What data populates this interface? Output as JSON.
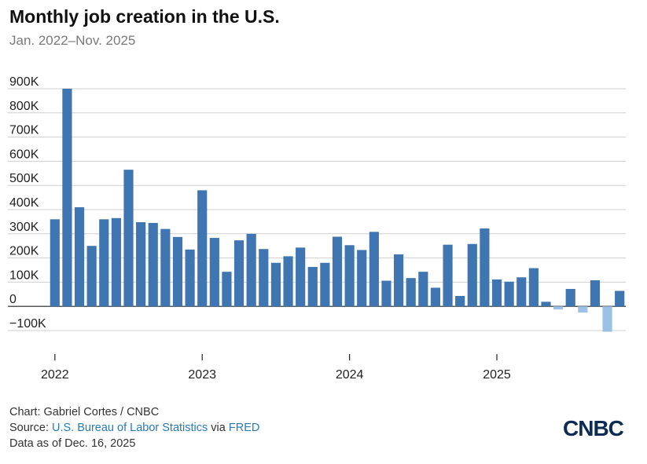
{
  "header": {
    "title": "Monthly job creation in the U.S.",
    "subtitle": "Jan. 2022–Nov. 2025"
  },
  "footer": {
    "credit": "Chart: Gabriel Cortes / CNBC",
    "source_prefix": "Source: ",
    "source_link1": "U.S. Bureau of Labor Statistics",
    "source_via": " via ",
    "source_link2": "FRED",
    "data_as_of": "Data as of Dec. 16, 2025"
  },
  "logo": "CNBC",
  "colors": {
    "bar": "#3f76b2",
    "bar_recent": "#9bc1e6",
    "grid": "#cfcfcf",
    "link": "#2a7ab8"
  },
  "chart_data": {
    "type": "bar",
    "title": "Monthly job creation in the U.S.",
    "subtitle": "Jan. 2022–Nov. 2025",
    "ylim": [
      -100000,
      900000
    ],
    "yticks": [
      {
        "value": 900000,
        "label": "900K"
      },
      {
        "value": 800000,
        "label": "800K"
      },
      {
        "value": 700000,
        "label": "700K"
      },
      {
        "value": 600000,
        "label": "600K"
      },
      {
        "value": 500000,
        "label": "500K"
      },
      {
        "value": 400000,
        "label": "400K"
      },
      {
        "value": 300000,
        "label": "300K"
      },
      {
        "value": 200000,
        "label": "200K"
      },
      {
        "value": 100000,
        "label": "100K"
      },
      {
        "value": 0,
        "label": "0"
      },
      {
        "value": -100000,
        "label": "−100K"
      }
    ],
    "xticks": [
      {
        "month": "2022-01",
        "label": "2022"
      },
      {
        "month": "2023-01",
        "label": "2023"
      },
      {
        "month": "2024-01",
        "label": "2024"
      },
      {
        "month": "2025-01",
        "label": "2025"
      }
    ],
    "grid": true,
    "series": [
      {
        "months": [
          "2022-01",
          "2022-02",
          "2022-03",
          "2022-04",
          "2022-05",
          "2022-06",
          "2022-07",
          "2022-08",
          "2022-09",
          "2022-10",
          "2022-11",
          "2022-12",
          "2023-01",
          "2023-02",
          "2023-03",
          "2023-04",
          "2023-05",
          "2023-06",
          "2023-07",
          "2023-08",
          "2023-09",
          "2023-10",
          "2023-11",
          "2023-12",
          "2024-01",
          "2024-02",
          "2024-03",
          "2024-04",
          "2024-05",
          "2024-06",
          "2024-07",
          "2024-08",
          "2024-09",
          "2024-10",
          "2024-11",
          "2024-12",
          "2025-01",
          "2025-02",
          "2025-03",
          "2025-04",
          "2025-05",
          "2025-06",
          "2025-07",
          "2025-08",
          "2025-09",
          "2025-10",
          "2025-11"
        ],
        "values": [
          360000,
          900000,
          410000,
          250000,
          360000,
          365000,
          565000,
          348000,
          345000,
          320000,
          287000,
          235000,
          480000,
          283000,
          143000,
          273000,
          300000,
          237000,
          180000,
          207000,
          243000,
          163000,
          180000,
          288000,
          253000,
          233000,
          308000,
          106000,
          215000,
          117000,
          143000,
          77000,
          255000,
          43000,
          258000,
          322000,
          111000,
          102000,
          120000,
          158000,
          19000,
          -13000,
          72000,
          -26000,
          108000,
          -105000,
          64000
        ],
        "status": [
          "final",
          "final",
          "final",
          "final",
          "final",
          "final",
          "final",
          "final",
          "final",
          "final",
          "final",
          "final",
          "final",
          "final",
          "final",
          "final",
          "final",
          "final",
          "final",
          "final",
          "final",
          "final",
          "final",
          "final",
          "final",
          "final",
          "final",
          "final",
          "final",
          "final",
          "final",
          "final",
          "final",
          "final",
          "final",
          "final",
          "final",
          "final",
          "final",
          "final",
          "final",
          "recent",
          "final",
          "recent",
          "final",
          "recent",
          "final"
        ]
      }
    ]
  }
}
